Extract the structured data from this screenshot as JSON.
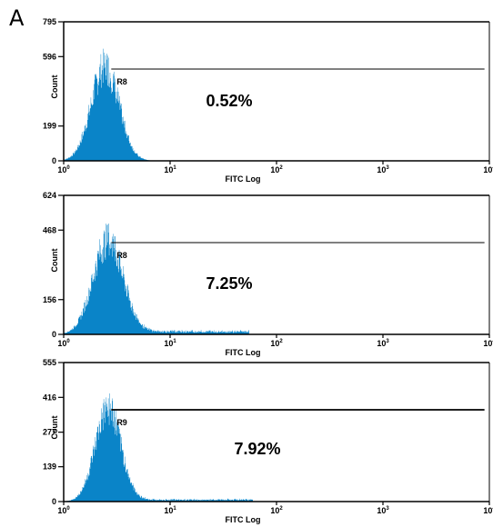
{
  "panel_label": "A",
  "colors": {
    "histogram": "#0A84C8",
    "axis": "#000000"
  },
  "chart_data": [
    {
      "type": "histogram",
      "xlabel": "FITC Log",
      "ylabel": "Count",
      "xscale": "log",
      "xlim": [
        1,
        10000
      ],
      "x_ticks": [
        {
          "base": "10",
          "exp": "0"
        },
        {
          "base": "10",
          "exp": "1"
        },
        {
          "base": "10",
          "exp": "2"
        },
        {
          "base": "10",
          "exp": "3"
        },
        {
          "base": "10",
          "exp": "4"
        }
      ],
      "ylim": [
        0,
        795
      ],
      "y_ticks": [
        "0",
        "199",
        "596",
        "795"
      ],
      "y_tick_values": [
        0,
        199,
        596,
        795
      ],
      "gate": {
        "name": "R8",
        "start": 2.8,
        "end": 9000
      },
      "percentage": "0.52%",
      "distribution": {
        "peak_x": 2.45,
        "peak_y": 540,
        "sigma_log": 0.13,
        "tail_level": 0,
        "tail_end": 5
      }
    },
    {
      "type": "histogram",
      "xlabel": "FITC Log",
      "ylabel": "Count",
      "xscale": "log",
      "xlim": [
        1,
        10000
      ],
      "x_ticks": [
        {
          "base": "10",
          "exp": "0"
        },
        {
          "base": "10",
          "exp": "1"
        },
        {
          "base": "10",
          "exp": "2"
        },
        {
          "base": "10",
          "exp": "3"
        },
        {
          "base": "10",
          "exp": "4"
        }
      ],
      "ylim": [
        0,
        624
      ],
      "y_ticks": [
        "0",
        "156",
        "468",
        "624"
      ],
      "y_tick_values": [
        0,
        156,
        468,
        624
      ],
      "gate": {
        "name": "R8",
        "start": 2.8,
        "end": 9000
      },
      "percentage": "7.25%",
      "distribution": {
        "peak_x": 2.6,
        "peak_y": 420,
        "sigma_log": 0.14,
        "tail_level": 18,
        "tail_end": 55
      }
    },
    {
      "type": "histogram",
      "xlabel": "FITC Log",
      "ylabel": "Count",
      "xscale": "log",
      "xlim": [
        1,
        10000
      ],
      "x_ticks": [
        {
          "base": "10",
          "exp": "0"
        },
        {
          "base": "10",
          "exp": "1"
        },
        {
          "base": "10",
          "exp": "2"
        },
        {
          "base": "10",
          "exp": "3"
        },
        {
          "base": "10",
          "exp": "4"
        }
      ],
      "ylim": [
        0,
        555
      ],
      "y_ticks": [
        "0",
        "139",
        "277",
        "416",
        "555"
      ],
      "y_tick_values": [
        0,
        139,
        277,
        416,
        555
      ],
      "gate": {
        "name": "R9",
        "start": 2.8,
        "end": 9000
      },
      "percentage": "7.92%",
      "distribution": {
        "peak_x": 2.6,
        "peak_y": 370,
        "sigma_log": 0.12,
        "tail_level": 10,
        "tail_end": 60
      }
    }
  ]
}
